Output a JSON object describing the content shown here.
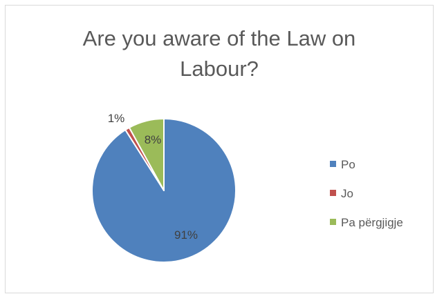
{
  "chart_data": {
    "type": "pie",
    "title_lines": [
      "Are you aware of the Law on",
      "Labour?"
    ],
    "categories": [
      "Po",
      "Jo",
      "Pa përgjigje"
    ],
    "values": [
      91,
      1,
      8
    ],
    "labels": [
      "91%",
      "1%",
      "8%"
    ],
    "colors": [
      "#4f81bd",
      "#c0504d",
      "#9bbb59"
    ],
    "legend_position": "right"
  }
}
